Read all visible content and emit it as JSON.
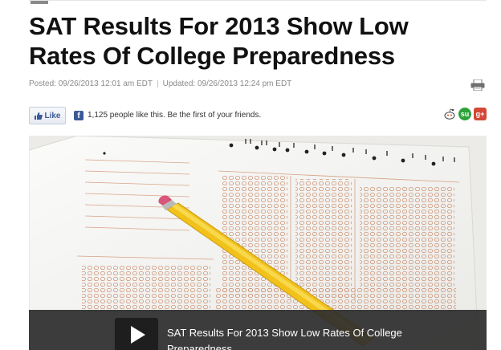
{
  "article": {
    "headline": "SAT Results For 2013 Show Low Rates Of College Preparedness",
    "posted": "Posted: 09/26/2013 12:01 am EDT",
    "separator": "|",
    "updated": "Updated: 09/26/2013 12:24 pm EDT"
  },
  "social": {
    "like_label": "Like",
    "like_text": "1,125 people like this. Be the first of your friends.",
    "icons": [
      "print-icon",
      "facebook-icon",
      "reddit-icon",
      "stumbleupon-icon",
      "google-plus-icon"
    ]
  },
  "video": {
    "title": "SAT Results For 2013 Show Low Rates Of College Preparedness",
    "play_icon": "play-icon"
  },
  "colors": {
    "headline": "#111111",
    "meta": "#8b8b8b",
    "facebook": "#3b5998",
    "stumbleupon": "#2ea13a",
    "google_plus": "#d34836",
    "pencil": "#f2c21b"
  }
}
